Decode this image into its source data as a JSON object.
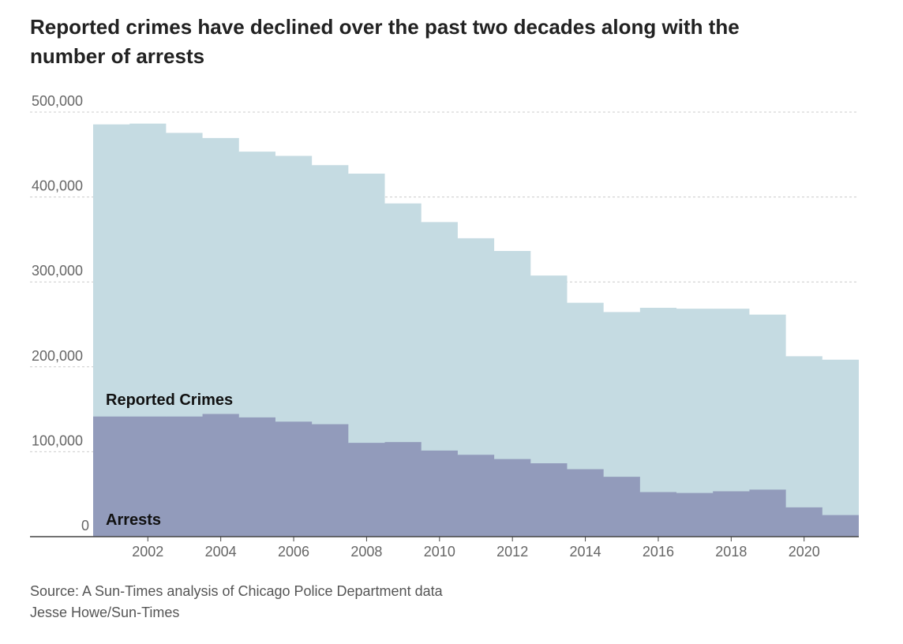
{
  "title": "Reported crimes have declined over the past two decades along with the number of arrests",
  "source": "Source: A Sun-Times analysis of Chicago Police Department data",
  "credit": "Jesse Howe/Sun-Times",
  "colors": {
    "crimes": "#c5dbe2",
    "arrests": "#929bbb",
    "grid": "#cccccc",
    "axis": "#444444",
    "tick": "#666666"
  },
  "chart_data": {
    "type": "area",
    "x": [
      2001,
      2002,
      2003,
      2004,
      2005,
      2006,
      2007,
      2008,
      2009,
      2010,
      2011,
      2012,
      2013,
      2014,
      2015,
      2016,
      2017,
      2018,
      2019,
      2020,
      2021
    ],
    "series": [
      {
        "name": "Reported Crimes",
        "values": [
          485000,
          486000,
          475000,
          469000,
          453000,
          448000,
          437000,
          427000,
          392000,
          370000,
          351000,
          336000,
          307000,
          275000,
          264000,
          269000,
          268000,
          268000,
          261000,
          212000,
          208000
        ]
      },
      {
        "name": "Arrests",
        "values": [
          141000,
          141000,
          141000,
          144000,
          140000,
          135000,
          132000,
          110000,
          111000,
          101000,
          96000,
          91000,
          86000,
          79000,
          70000,
          52000,
          51000,
          53000,
          55000,
          34000,
          25000
        ]
      }
    ],
    "step": true,
    "ylim": [
      0,
      500000
    ],
    "yticks": [
      {
        "value": 0,
        "label": "0"
      },
      {
        "value": 100000,
        "label": "100,000"
      },
      {
        "value": 200000,
        "label": "200,000"
      },
      {
        "value": 300000,
        "label": "300,000"
      },
      {
        "value": 400000,
        "label": "400,000"
      },
      {
        "value": 500000,
        "label": "500,000"
      }
    ],
    "xticks": [
      {
        "value": 2002,
        "label": "2002"
      },
      {
        "value": 2004,
        "label": "2004"
      },
      {
        "value": 2006,
        "label": "2006"
      },
      {
        "value": 2008,
        "label": "2008"
      },
      {
        "value": 2010,
        "label": "2010"
      },
      {
        "value": 2012,
        "label": "2012"
      },
      {
        "value": 2014,
        "label": "2014"
      },
      {
        "value": 2016,
        "label": "2016"
      },
      {
        "value": 2018,
        "label": "2018"
      },
      {
        "value": 2020,
        "label": "2020"
      }
    ],
    "grid": true,
    "legend": "inline"
  }
}
